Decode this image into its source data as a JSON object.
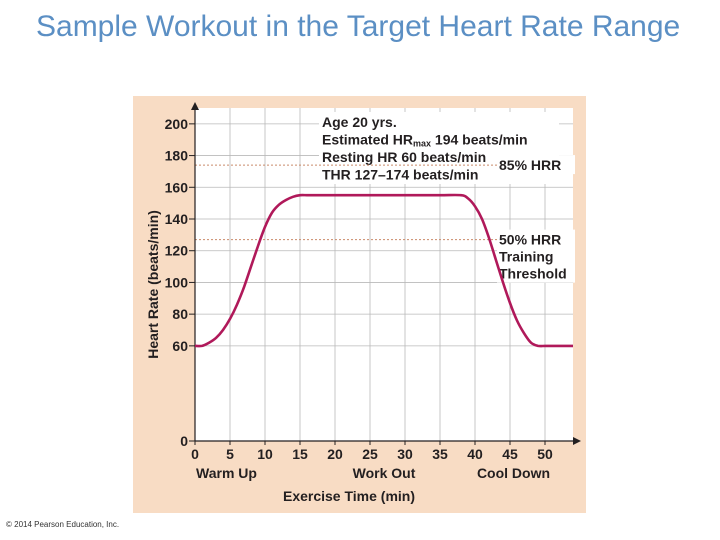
{
  "slide": {
    "title": "Sample Workout in the Target Heart Rate Range",
    "copyright": "© 2014 Pearson Education, Inc."
  },
  "colors": {
    "panel": "#f8dcc4",
    "plot_bg": "#ffffff",
    "curve": "#b0195a",
    "title": "#5b8fc4"
  },
  "chart_data": {
    "type": "line",
    "title": "",
    "xlabel": "Exercise Time (min)",
    "ylabel": "Heart Rate (beats/min)",
    "xlim": [
      0,
      54
    ],
    "ylim": [
      0,
      210
    ],
    "x_ticks": [
      0,
      5,
      10,
      15,
      20,
      25,
      30,
      35,
      40,
      45,
      50
    ],
    "y_ticks": [
      0,
      60,
      80,
      100,
      120,
      140,
      160,
      180,
      200
    ],
    "phase_labels": [
      {
        "label": "Warm Up",
        "x": 4.5
      },
      {
        "label": "Work Out",
        "x": 27
      },
      {
        "label": "Cool Down",
        "x": 45.5
      }
    ],
    "info_lines": [
      {
        "pre": "Age 20 yrs.",
        "sub": "",
        "post": ""
      },
      {
        "pre": "Estimated HR",
        "sub": "max",
        "post": " 194 beats/min"
      },
      {
        "pre": "Resting HR 60 beats/min",
        "sub": "",
        "post": ""
      },
      {
        "pre": "THR 127–174 beats/min",
        "sub": "",
        "post": ""
      }
    ],
    "reference_lines": [
      {
        "value": 174,
        "label_lines": [
          "85% HRR"
        ]
      },
      {
        "value": 127,
        "label_lines": [
          "50% HRR",
          "Training",
          "Threshold"
        ]
      }
    ],
    "series": [
      {
        "name": "Heart rate",
        "x": [
          0,
          1,
          2,
          3,
          4,
          5,
          6,
          7,
          8,
          9,
          10,
          11,
          12,
          13,
          14,
          15,
          16,
          17,
          18,
          19,
          20,
          22,
          25,
          30,
          35,
          38,
          39,
          40,
          41,
          42,
          43,
          44,
          45,
          46,
          47,
          48,
          49,
          50,
          51,
          52,
          53,
          54
        ],
        "y": [
          60,
          60,
          62,
          65,
          70,
          77,
          86,
          97,
          110,
          123,
          135,
          144,
          149,
          152,
          154,
          155,
          155,
          155,
          155,
          155,
          155,
          155,
          155,
          155,
          155,
          155,
          153,
          148,
          140,
          128,
          114,
          100,
          87,
          76,
          68,
          62,
          60,
          60,
          60,
          60,
          60,
          60
        ]
      }
    ]
  }
}
